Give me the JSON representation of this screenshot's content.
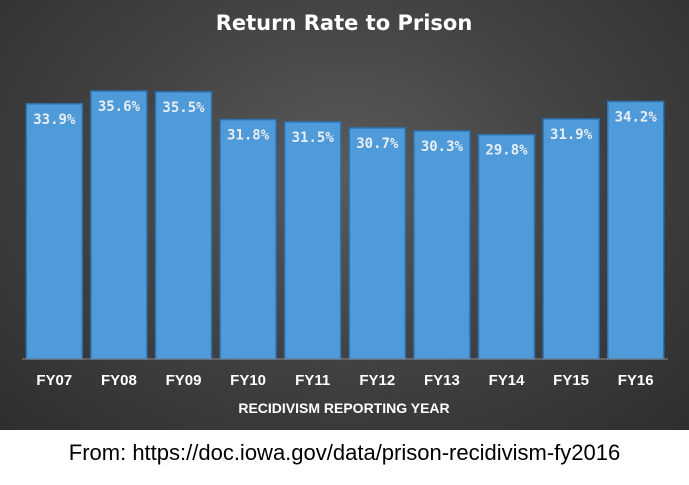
{
  "chart_data": {
    "type": "bar",
    "title": "Return Rate to Prison",
    "xlabel": "RECIDIVISM REPORTING YEAR",
    "ylabel": "",
    "categories": [
      "FY07",
      "FY08",
      "FY09",
      "FY10",
      "FY11",
      "FY12",
      "FY13",
      "FY14",
      "FY15",
      "FY16"
    ],
    "values": [
      33.9,
      35.6,
      35.5,
      31.8,
      31.5,
      30.7,
      30.3,
      29.8,
      31.9,
      34.2
    ],
    "data_labels": [
      "33.9%",
      "35.6%",
      "35.5%",
      "31.8%",
      "31.5%",
      "30.7%",
      "30.3%",
      "29.8%",
      "31.9%",
      "34.2%"
    ],
    "ylim": [
      0,
      35.6
    ],
    "grid": false,
    "legend": "none",
    "colors": {
      "bar": "#4f9ad8",
      "bar_edge": "#2a72b2",
      "label": "#e8eef5",
      "axis_text": "#ffffff",
      "title": "#ffffff"
    }
  },
  "caption": "From: https://doc.iowa.gov/data/prison-recidivism-fy2016"
}
